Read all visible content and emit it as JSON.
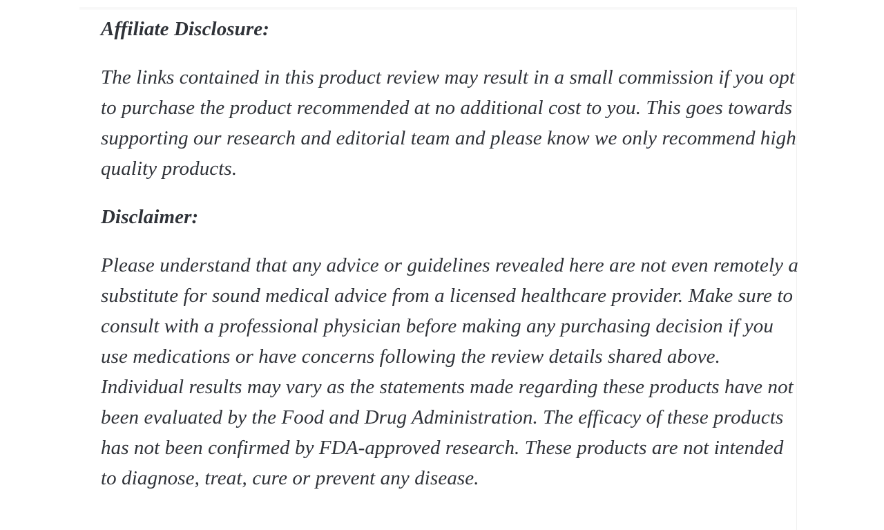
{
  "page": {
    "background": "#ffffff",
    "text_color": "#2f3238",
    "frame_top_color": "#f8f8f8",
    "frame_edge_color": "#f0f0f0"
  },
  "article": {
    "sections": [
      {
        "heading": "Affiliate Disclosure:",
        "body": "The links contained in this product review may result in a small commission if you opt to purchase the product recommended at no additional cost to you. This goes towards supporting our research and editorial team and please know we only recommend high quality products."
      },
      {
        "heading": "Disclaimer:",
        "body": "Please understand that any advice or guidelines revealed here are not even remotely a substitute for sound medical advice from a licensed healthcare provider. Make sure to consult with a professional physician before making any purchasing decision if you use medications or have concerns following the review details shared above. Individual results may vary as the statements made regarding these products have not been evaluated by the Food and Drug Administration. The efficacy of these products has not been confirmed by FDA-approved research. These products are not intended to diagnose, treat, cure or prevent any disease."
      }
    ]
  }
}
